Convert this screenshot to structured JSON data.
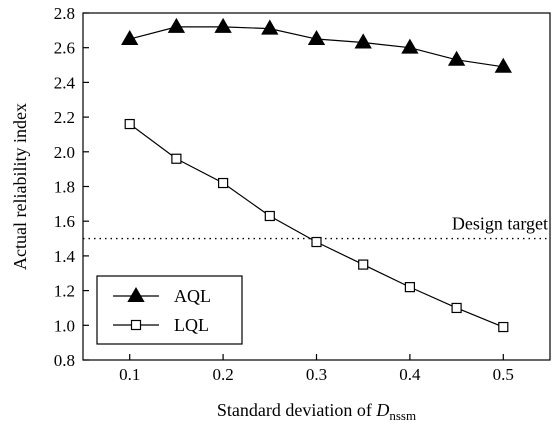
{
  "chart_data": {
    "type": "line",
    "xlabel": "Standard deviation of ",
    "xlabel_var": "D",
    "xlabel_sub": "nssm",
    "ylabel": "Actual reliability index",
    "xlim": [
      0.05,
      0.55
    ],
    "ylim": [
      0.8,
      2.8
    ],
    "xticks": [
      "0.1",
      "0.2",
      "0.3",
      "0.4",
      "0.5"
    ],
    "yticks": [
      "0.8",
      "1.0",
      "1.2",
      "1.4",
      "1.6",
      "1.8",
      "2.0",
      "2.2",
      "2.4",
      "2.6",
      "2.8"
    ],
    "x": [
      0.1,
      0.15,
      0.2,
      0.25,
      0.3,
      0.35,
      0.4,
      0.45,
      0.5
    ],
    "series": [
      {
        "name": "AQL",
        "marker": "filled-triangle",
        "values": [
          2.65,
          2.72,
          2.72,
          2.71,
          2.65,
          2.63,
          2.6,
          2.53,
          2.49
        ]
      },
      {
        "name": "LQL",
        "marker": "open-square",
        "values": [
          2.16,
          1.96,
          1.82,
          1.63,
          1.48,
          1.35,
          1.22,
          1.1,
          0.99
        ]
      }
    ],
    "reference_line": {
      "y": 1.5,
      "style": "dotted",
      "label": "Design target"
    },
    "legend_position": "bottom-left",
    "grid": false
  }
}
